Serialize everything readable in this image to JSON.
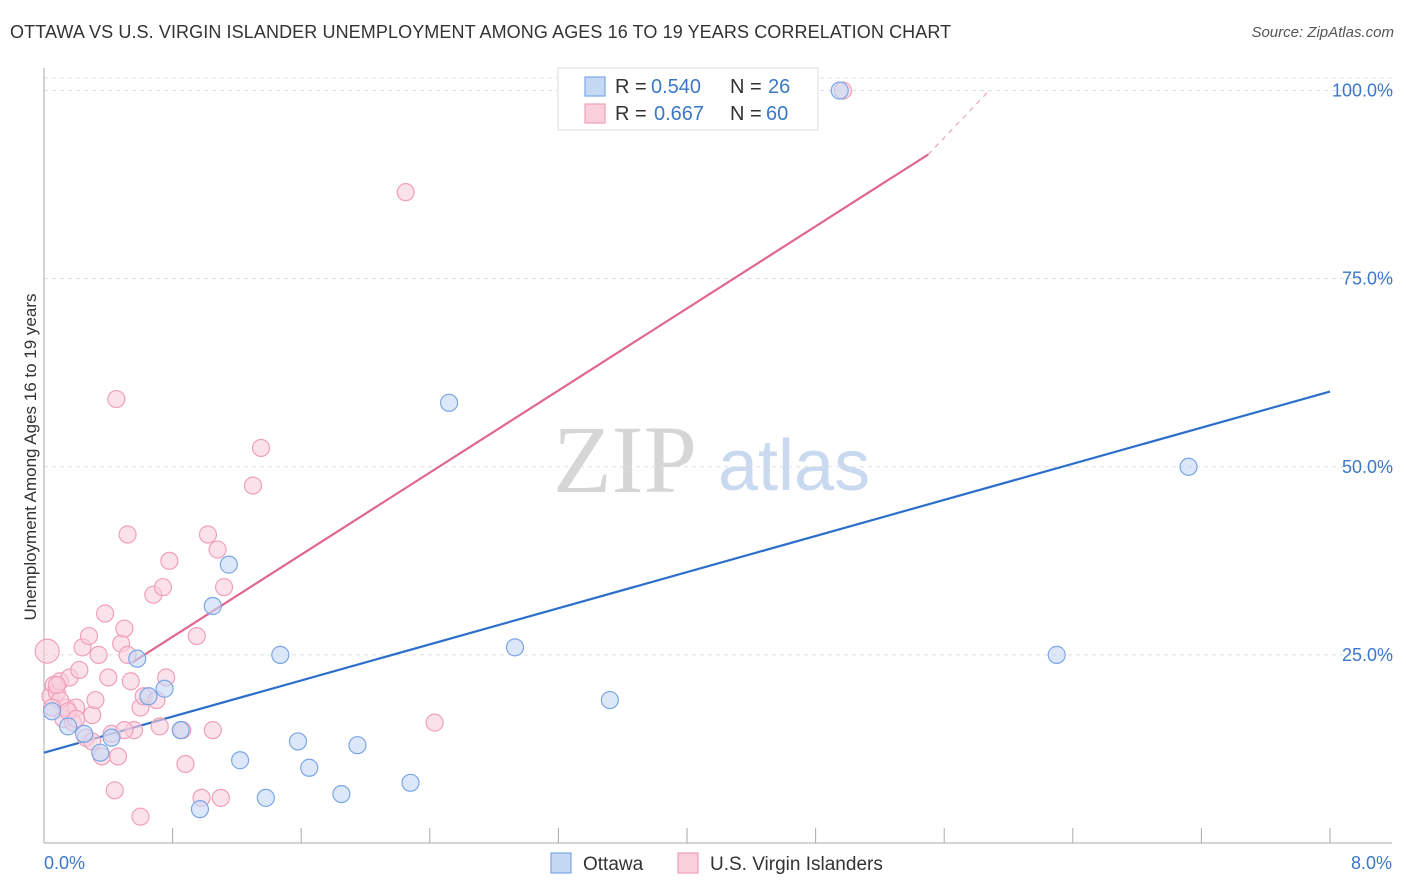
{
  "header": {
    "title": "OTTAWA VS U.S. VIRGIN ISLANDER UNEMPLOYMENT AMONG AGES 16 TO 19 YEARS CORRELATION CHART",
    "source": "Source: ZipAtlas.com"
  },
  "watermark": {
    "zip": "ZIP",
    "atlas": "atlas"
  },
  "chart_data": {
    "type": "scatter",
    "title": "OTTAWA VS U.S. VIRGIN ISLANDER UNEMPLOYMENT AMONG AGES 16 TO 19 YEARS CORRELATION CHART",
    "xlabel": "",
    "ylabel": "Unemployment Among Ages 16 to 19 years",
    "xlim": [
      0,
      8
    ],
    "ylim": [
      0,
      103
    ],
    "x_tick_labels": [
      "0.0%",
      "8.0%"
    ],
    "y_ticks": [
      25,
      50,
      75,
      100
    ],
    "y_tick_labels": [
      "25.0%",
      "50.0%",
      "75.0%",
      "100.0%"
    ],
    "legend": {
      "r_label": "R =",
      "n_label": "N =",
      "entries": [
        {
          "r": "0.540",
          "n": "26"
        },
        {
          "r": "0.667",
          "n": "60"
        }
      ]
    },
    "series": [
      {
        "name": "Ottawa",
        "color": "#7aa6e6",
        "fill": "#c5d9f5",
        "trend_color": "#2b6fcb",
        "r": 0.54,
        "n": 26,
        "trend": {
          "x0": 0.0,
          "y0": 12.0,
          "x1": 8.0,
          "y1": 60.0
        },
        "points": [
          [
            0.05,
            17.5
          ],
          [
            0.15,
            15.5
          ],
          [
            0.25,
            14.5
          ],
          [
            0.35,
            12.0
          ],
          [
            0.42,
            14.0
          ],
          [
            0.58,
            24.5
          ],
          [
            0.65,
            19.5
          ],
          [
            0.75,
            20.5
          ],
          [
            0.85,
            15.0
          ],
          [
            0.97,
            4.5
          ],
          [
            1.05,
            31.5
          ],
          [
            1.15,
            37.0
          ],
          [
            1.22,
            11.0
          ],
          [
            1.38,
            6.0
          ],
          [
            1.47,
            25.0
          ],
          [
            1.58,
            13.5
          ],
          [
            1.65,
            10.0
          ],
          [
            1.85,
            6.5
          ],
          [
            1.95,
            13.0
          ],
          [
            2.28,
            8.0
          ],
          [
            2.52,
            58.5
          ],
          [
            2.93,
            26.0
          ],
          [
            3.52,
            19.0
          ],
          [
            6.3,
            25.0
          ],
          [
            7.12,
            50.0
          ],
          [
            4.95,
            100.0
          ]
        ]
      },
      {
        "name": "U.S. Virgin Islanders",
        "color": "#f0a0b8",
        "fill": "#f9cfdc",
        "trend_color": "#e0668e",
        "r": 0.667,
        "n": 60,
        "trend": {
          "x0": 0.55,
          "y0": 24.0,
          "x1": 5.5,
          "y1": 91.5
        },
        "trend_dashed": {
          "x0": 5.5,
          "y0": 91.5,
          "x1": 5.88,
          "y1": 100.0
        },
        "points": [
          [
            0.02,
            25.5
          ],
          [
            0.04,
            19.5
          ],
          [
            0.06,
            21.0
          ],
          [
            0.08,
            20.0
          ],
          [
            0.1,
            21.5
          ],
          [
            0.12,
            16.5
          ],
          [
            0.14,
            18.0
          ],
          [
            0.16,
            22.0
          ],
          [
            0.18,
            16.0
          ],
          [
            0.2,
            18.0
          ],
          [
            0.22,
            23.0
          ],
          [
            0.24,
            26.0
          ],
          [
            0.26,
            14.0
          ],
          [
            0.28,
            27.5
          ],
          [
            0.3,
            17.0
          ],
          [
            0.32,
            19.0
          ],
          [
            0.34,
            25.0
          ],
          [
            0.36,
            11.5
          ],
          [
            0.38,
            30.5
          ],
          [
            0.4,
            22.0
          ],
          [
            0.42,
            14.5
          ],
          [
            0.44,
            7.0
          ],
          [
            0.46,
            11.5
          ],
          [
            0.48,
            26.5
          ],
          [
            0.5,
            28.5
          ],
          [
            0.52,
            25.0
          ],
          [
            0.54,
            21.5
          ],
          [
            0.56,
            15.0
          ],
          [
            0.6,
            18.0
          ],
          [
            0.62,
            19.5
          ],
          [
            0.68,
            33.0
          ],
          [
            0.7,
            19.0
          ],
          [
            0.72,
            15.5
          ],
          [
            0.74,
            34.0
          ],
          [
            0.76,
            22.0
          ],
          [
            0.78,
            37.5
          ],
          [
            0.86,
            15.0
          ],
          [
            0.88,
            10.5
          ],
          [
            0.95,
            27.5
          ],
          [
            0.98,
            6.0
          ],
          [
            1.02,
            41.0
          ],
          [
            1.05,
            15.0
          ],
          [
            1.08,
            39.0
          ],
          [
            1.12,
            34.0
          ],
          [
            1.1,
            6.0
          ],
          [
            1.3,
            47.5
          ],
          [
            1.35,
            52.5
          ],
          [
            0.3,
            13.5
          ],
          [
            0.5,
            15.0
          ],
          [
            0.45,
            59.0
          ],
          [
            0.52,
            41.0
          ],
          [
            0.6,
            3.5
          ],
          [
            2.43,
            16.0
          ],
          [
            2.25,
            86.5
          ],
          [
            4.97,
            100.0
          ],
          [
            0.1,
            19.0
          ],
          [
            0.05,
            18.0
          ],
          [
            0.08,
            21.0
          ],
          [
            0.15,
            17.5
          ],
          [
            0.2,
            16.5
          ]
        ]
      }
    ]
  },
  "bottom_legend": {
    "items": [
      {
        "label": "Ottawa"
      },
      {
        "label": "U.S. Virgin Islanders"
      }
    ]
  }
}
